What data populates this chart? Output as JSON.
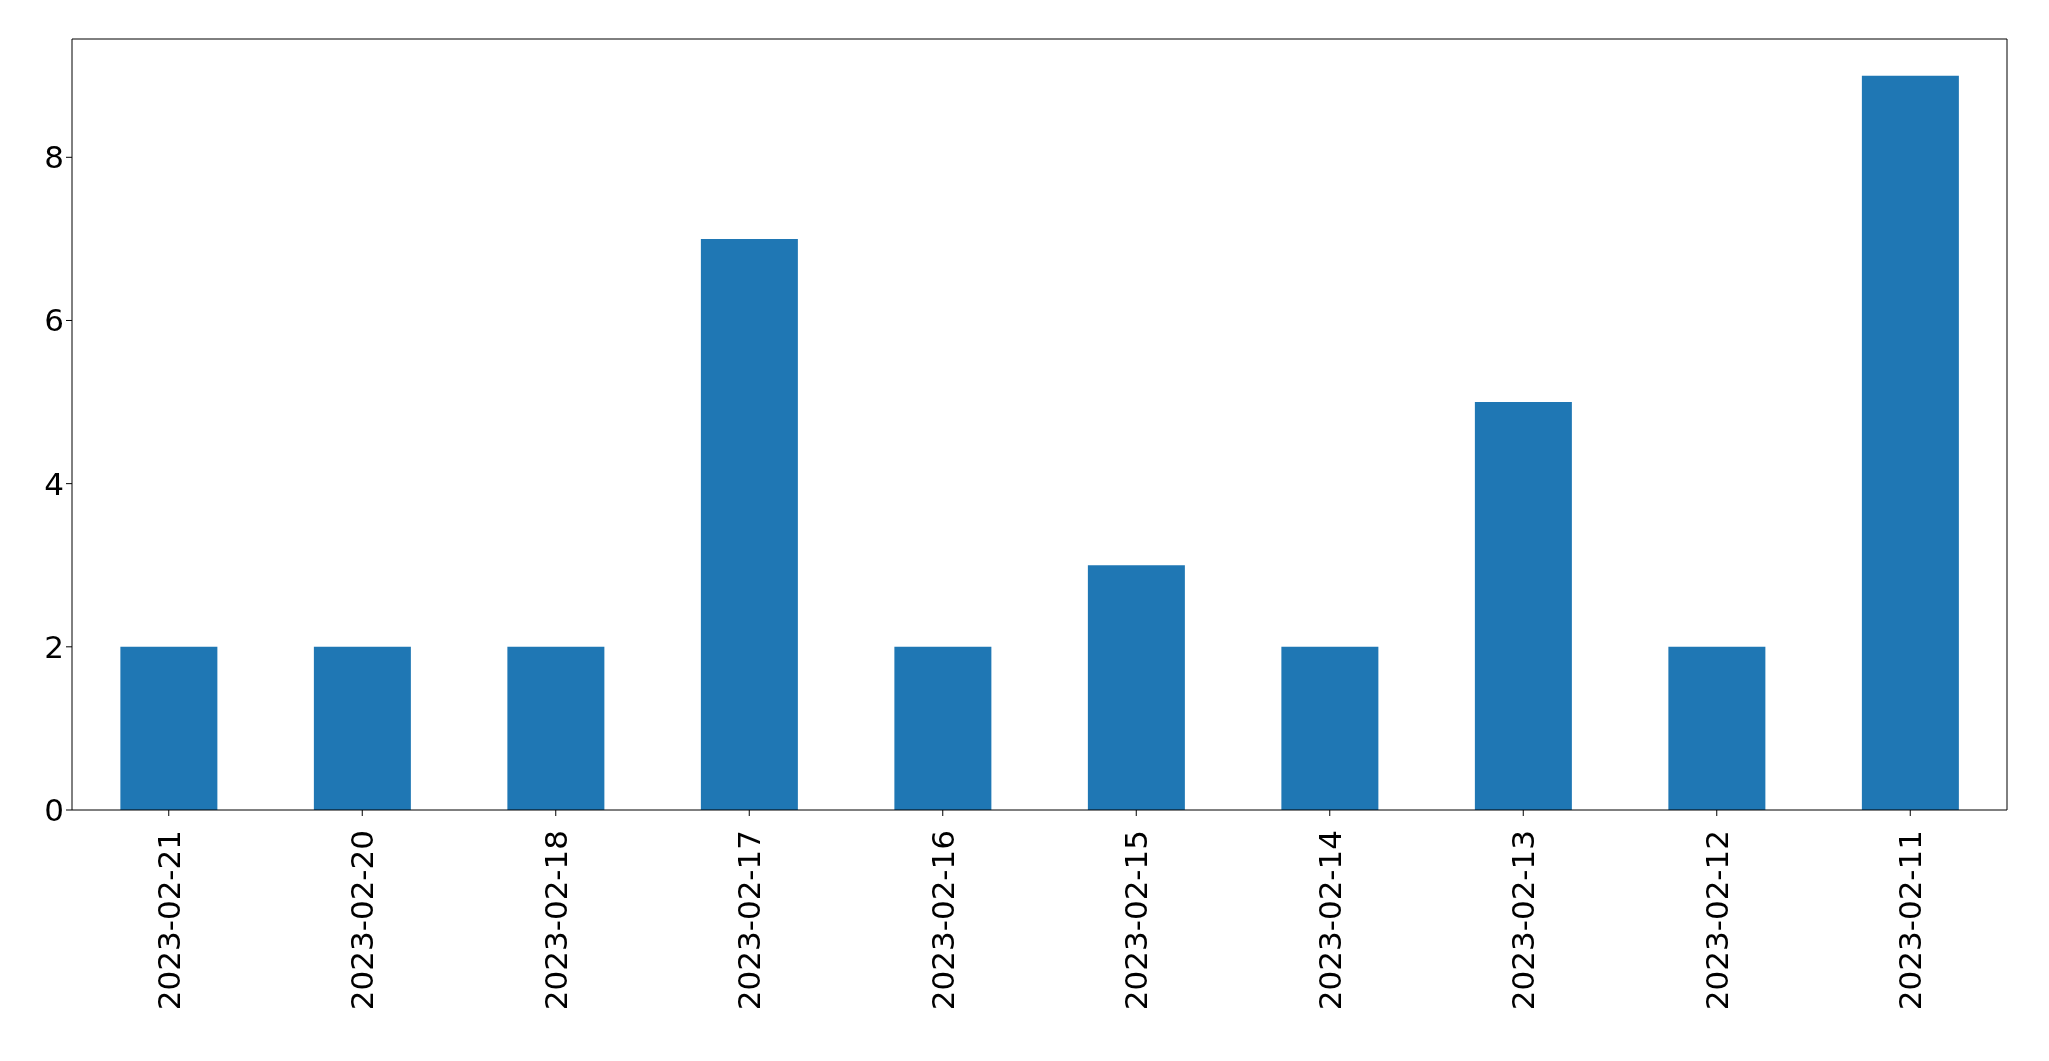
{
  "chart_data": {
    "type": "bar",
    "categories": [
      "2023-02-21",
      "2023-02-20",
      "2023-02-18",
      "2023-02-17",
      "2023-02-16",
      "2023-02-15",
      "2023-02-14",
      "2023-02-13",
      "2023-02-12",
      "2023-02-11"
    ],
    "values": [
      2,
      2,
      2,
      7,
      2,
      3,
      2,
      5,
      2,
      9
    ],
    "color": "#1f77b4",
    "ylim": [
      0,
      9.45
    ],
    "yticks": [
      0,
      2,
      4,
      6,
      8
    ]
  }
}
